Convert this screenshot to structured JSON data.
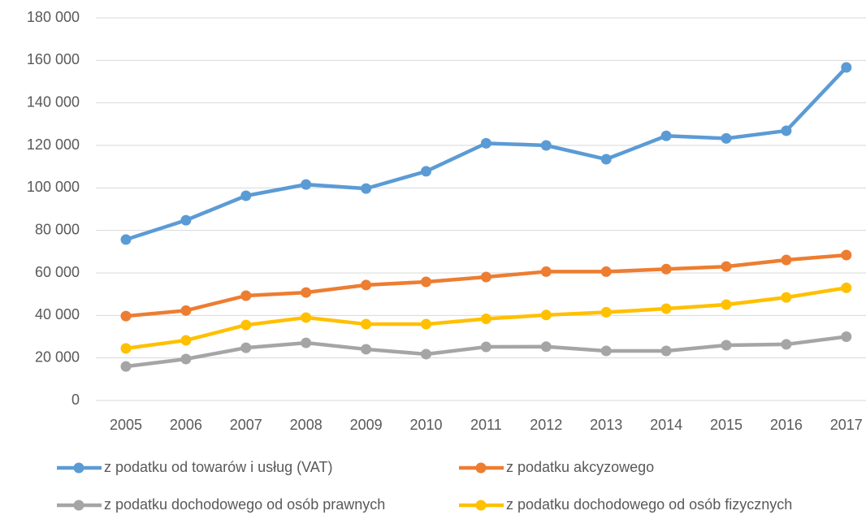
{
  "chart_data": {
    "type": "line",
    "categories": [
      "2005",
      "2006",
      "2007",
      "2008",
      "2009",
      "2010",
      "2011",
      "2012",
      "2013",
      "2014",
      "2015",
      "2016",
      "2017"
    ],
    "series": [
      {
        "name": "z podatku od towarów i usług (VAT)",
        "color": "#5b9bd5",
        "values": [
          75700,
          84800,
          96300,
          101600,
          99700,
          107800,
          121000,
          120000,
          113500,
          124500,
          123300,
          126900,
          156700
        ]
      },
      {
        "name": "z podatku akcyzowego",
        "color": "#ed7d31",
        "values": [
          39700,
          42300,
          49300,
          50800,
          54300,
          55800,
          58100,
          60600,
          60600,
          61800,
          63000,
          66100,
          68400
        ]
      },
      {
        "name": "z podatku dochodowego od osób prawnych",
        "color": "#a5a5a5",
        "values": [
          16000,
          19500,
          24800,
          27100,
          24100,
          21800,
          25200,
          25300,
          23300,
          23300,
          26000,
          26400,
          30000
        ]
      },
      {
        "name": "z podatku dochodowego od osób fizycznych",
        "color": "#ffc000",
        "values": [
          24500,
          28300,
          35500,
          39000,
          35900,
          35900,
          38400,
          40200,
          41500,
          43200,
          45100,
          48500,
          53000
        ]
      }
    ],
    "ylim": [
      0,
      180000
    ],
    "yticks": [
      0,
      {
        "value": 20000,
        "label": "20 000"
      },
      {
        "value": 40000,
        "label": "40 000"
      },
      {
        "value": 60000,
        "label": "60 000"
      },
      {
        "value": 80000,
        "label": "80 000"
      },
      {
        "value": 100000,
        "label": "100 000"
      },
      {
        "value": 120000,
        "label": "120 000"
      },
      {
        "value": 140000,
        "label": "140 000"
      },
      {
        "value": 160000,
        "label": "160 000"
      },
      {
        "value": 180000,
        "label": "180 000"
      }
    ],
    "grid": true,
    "legend": "bottom"
  }
}
